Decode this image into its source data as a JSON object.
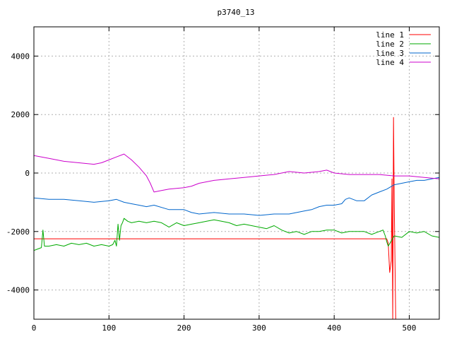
{
  "chart_data": {
    "type": "line",
    "title": "p3740_13",
    "xlabel": "",
    "ylabel": "",
    "xlim": [
      0,
      540
    ],
    "ylim": [
      -5000,
      5000
    ],
    "grid": true,
    "legend_position": "top-right",
    "x_ticks": [
      "0",
      "100",
      "200",
      "300",
      "400",
      "500"
    ],
    "y_ticks": [
      "-4000",
      "-2000",
      "0",
      "2000",
      "4000"
    ],
    "x_tick_values": [
      0,
      100,
      200,
      300,
      400,
      500
    ],
    "y_tick_values": [
      -4000,
      -2000,
      0,
      2000,
      4000
    ],
    "series": [
      {
        "name": "line 1",
        "color": "#ff0000",
        "points": [
          [
            0,
            -2250
          ],
          [
            470,
            -2250
          ],
          [
            472,
            -2400
          ],
          [
            474,
            -3400
          ],
          [
            476,
            -3000
          ],
          [
            477,
            -200
          ],
          [
            478,
            -5000
          ],
          [
            479,
            1900
          ],
          [
            480,
            -1000
          ],
          [
            482,
            -5000
          ]
        ]
      },
      {
        "name": "line 2",
        "color": "#00aa00",
        "points": [
          [
            0,
            -2650
          ],
          [
            5,
            -2600
          ],
          [
            10,
            -2550
          ],
          [
            12,
            -1950
          ],
          [
            14,
            -2500
          ],
          [
            20,
            -2500
          ],
          [
            30,
            -2450
          ],
          [
            40,
            -2500
          ],
          [
            50,
            -2400
          ],
          [
            60,
            -2450
          ],
          [
            70,
            -2400
          ],
          [
            80,
            -2500
          ],
          [
            90,
            -2450
          ],
          [
            100,
            -2500
          ],
          [
            105,
            -2450
          ],
          [
            108,
            -2300
          ],
          [
            110,
            -2500
          ],
          [
            112,
            -1750
          ],
          [
            114,
            -2300
          ],
          [
            116,
            -1800
          ],
          [
            118,
            -1700
          ],
          [
            120,
            -1550
          ],
          [
            125,
            -1650
          ],
          [
            130,
            -1700
          ],
          [
            140,
            -1650
          ],
          [
            150,
            -1700
          ],
          [
            160,
            -1650
          ],
          [
            170,
            -1700
          ],
          [
            180,
            -1850
          ],
          [
            190,
            -1700
          ],
          [
            200,
            -1800
          ],
          [
            210,
            -1750
          ],
          [
            220,
            -1700
          ],
          [
            230,
            -1650
          ],
          [
            240,
            -1600
          ],
          [
            250,
            -1650
          ],
          [
            260,
            -1700
          ],
          [
            270,
            -1800
          ],
          [
            280,
            -1750
          ],
          [
            290,
            -1800
          ],
          [
            300,
            -1850
          ],
          [
            310,
            -1900
          ],
          [
            320,
            -1800
          ],
          [
            330,
            -1950
          ],
          [
            340,
            -2050
          ],
          [
            350,
            -2000
          ],
          [
            360,
            -2100
          ],
          [
            370,
            -2000
          ],
          [
            380,
            -2000
          ],
          [
            390,
            -1950
          ],
          [
            400,
            -1950
          ],
          [
            410,
            -2050
          ],
          [
            420,
            -2000
          ],
          [
            430,
            -2000
          ],
          [
            440,
            -2000
          ],
          [
            450,
            -2100
          ],
          [
            460,
            -2000
          ],
          [
            465,
            -1950
          ],
          [
            468,
            -2150
          ],
          [
            470,
            -2350
          ],
          [
            472,
            -2500
          ],
          [
            480,
            -2150
          ],
          [
            490,
            -2200
          ],
          [
            500,
            -2000
          ],
          [
            510,
            -2050
          ],
          [
            520,
            -2000
          ],
          [
            530,
            -2150
          ],
          [
            540,
            -2200
          ]
        ]
      },
      {
        "name": "line 3",
        "color": "#0066cc",
        "points": [
          [
            0,
            -850
          ],
          [
            20,
            -900
          ],
          [
            40,
            -900
          ],
          [
            60,
            -950
          ],
          [
            80,
            -1000
          ],
          [
            100,
            -950
          ],
          [
            110,
            -900
          ],
          [
            120,
            -1000
          ],
          [
            130,
            -1050
          ],
          [
            140,
            -1100
          ],
          [
            150,
            -1150
          ],
          [
            160,
            -1100
          ],
          [
            180,
            -1250
          ],
          [
            200,
            -1250
          ],
          [
            210,
            -1350
          ],
          [
            220,
            -1400
          ],
          [
            240,
            -1350
          ],
          [
            260,
            -1400
          ],
          [
            280,
            -1400
          ],
          [
            300,
            -1450
          ],
          [
            320,
            -1400
          ],
          [
            340,
            -1400
          ],
          [
            360,
            -1300
          ],
          [
            370,
            -1250
          ],
          [
            380,
            -1150
          ],
          [
            390,
            -1100
          ],
          [
            400,
            -1100
          ],
          [
            410,
            -1050
          ],
          [
            415,
            -900
          ],
          [
            420,
            -850
          ],
          [
            430,
            -950
          ],
          [
            440,
            -950
          ],
          [
            450,
            -750
          ],
          [
            460,
            -650
          ],
          [
            470,
            -550
          ],
          [
            480,
            -400
          ],
          [
            490,
            -350
          ],
          [
            500,
            -300
          ],
          [
            510,
            -250
          ],
          [
            520,
            -250
          ],
          [
            530,
            -200
          ],
          [
            540,
            -150
          ]
        ]
      },
      {
        "name": "line 4",
        "color": "#cc00cc",
        "points": [
          [
            0,
            600
          ],
          [
            20,
            500
          ],
          [
            40,
            400
          ],
          [
            60,
            350
          ],
          [
            80,
            300
          ],
          [
            90,
            350
          ],
          [
            100,
            450
          ],
          [
            110,
            550
          ],
          [
            120,
            650
          ],
          [
            130,
            450
          ],
          [
            140,
            200
          ],
          [
            150,
            -100
          ],
          [
            155,
            -350
          ],
          [
            160,
            -650
          ],
          [
            170,
            -600
          ],
          [
            180,
            -550
          ],
          [
            200,
            -500
          ],
          [
            210,
            -450
          ],
          [
            220,
            -350
          ],
          [
            240,
            -250
          ],
          [
            260,
            -200
          ],
          [
            280,
            -150
          ],
          [
            300,
            -100
          ],
          [
            320,
            -50
          ],
          [
            330,
            0
          ],
          [
            340,
            50
          ],
          [
            360,
            0
          ],
          [
            380,
            50
          ],
          [
            390,
            100
          ],
          [
            400,
            0
          ],
          [
            420,
            -50
          ],
          [
            440,
            -50
          ],
          [
            460,
            -50
          ],
          [
            480,
            -100
          ],
          [
            500,
            -100
          ],
          [
            520,
            -150
          ],
          [
            540,
            -200
          ]
        ]
      }
    ]
  }
}
